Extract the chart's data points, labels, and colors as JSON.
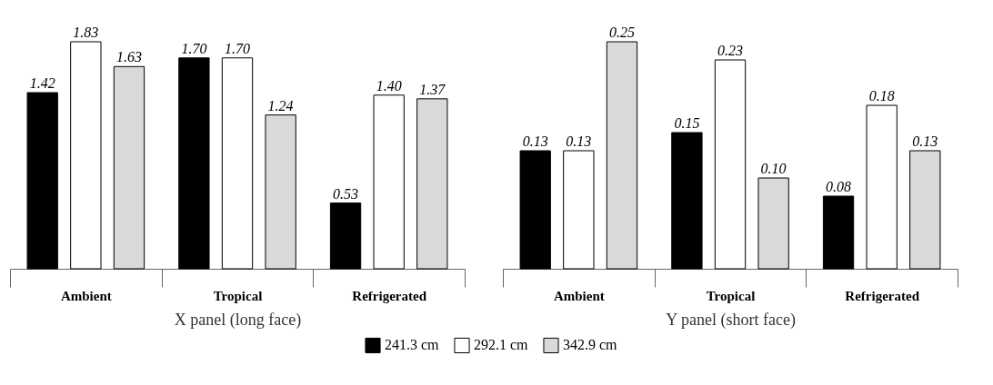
{
  "chart_data": [
    {
      "type": "bar",
      "xlabel": "X panel (long face)",
      "categories": [
        "Ambient",
        "Tropical",
        "Refrigerated"
      ],
      "series": [
        {
          "name": "241.3 cm",
          "color": "#000000",
          "values": [
            1.42,
            1.7,
            0.53
          ],
          "value_labels": [
            "1.42",
            "1.70",
            "0.53"
          ]
        },
        {
          "name": "292.1 cm",
          "color": "#ffffff",
          "values": [
            1.83,
            1.7,
            1.4
          ],
          "value_labels": [
            "1.83",
            "1.70",
            "1.40"
          ]
        },
        {
          "name": "342.9 cm",
          "color": "#d9d9d9",
          "values": [
            1.63,
            1.24,
            1.37
          ],
          "value_labels": [
            "1.63",
            "1.24",
            "1.37"
          ]
        }
      ],
      "data_labels": true,
      "legend": "bottom",
      "tick_labels": "x"
    },
    {
      "type": "bar",
      "xlabel": "Y panel (short face)",
      "categories": [
        "Ambient",
        "Tropical",
        "Refrigerated"
      ],
      "series": [
        {
          "color": "#000000",
          "values": [
            0.13,
            0.15,
            0.08
          ],
          "value_labels": [
            "0.13",
            "0.15",
            "0.08"
          ]
        },
        {
          "color": "#ffffff",
          "values": [
            0.13,
            0.23,
            0.18
          ],
          "value_labels": [
            "0.13",
            "0.23",
            "0.18"
          ]
        },
        {
          "color": "#d9d9d9",
          "values": [
            0.25,
            0.1,
            0.13
          ],
          "value_labels": [
            "0.25",
            "0.10",
            "0.13"
          ]
        }
      ],
      "data_labels": true,
      "tick_labels": "x"
    }
  ]
}
